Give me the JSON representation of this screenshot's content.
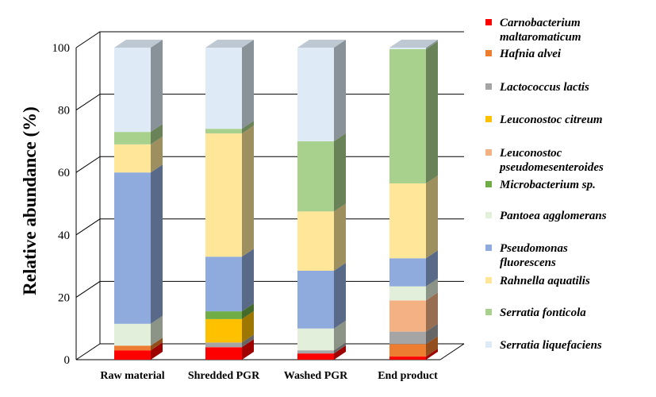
{
  "chart_data": {
    "type": "bar",
    "stacked": true,
    "three_d": true,
    "ylabel": "Relative abundance (%)",
    "xlabel": "",
    "ylim": [
      0,
      100
    ],
    "yticks": [
      0,
      20,
      40,
      60,
      80,
      100
    ],
    "grid": "horizontal",
    "legend_position": "right",
    "categories": [
      "Raw material",
      "Shredded PGR",
      "Washed PGR",
      "End product"
    ],
    "series": [
      {
        "name": "Carnobacterium maltaromaticum",
        "lines": [
          "Carnobacterium",
          "maltaromaticum"
        ],
        "color": "#ff0000",
        "values": [
          3,
          4,
          2,
          1
        ]
      },
      {
        "name": "Hafnia alvei",
        "lines": [
          "Hafnia alvei"
        ],
        "color": "#ed7d31",
        "values": [
          1.5,
          0,
          0,
          4
        ]
      },
      {
        "name": "Lactococcus lactis",
        "lines": [
          "Lactococcus lactis"
        ],
        "color": "#a5a5a5",
        "values": [
          0,
          1.5,
          1,
          4
        ]
      },
      {
        "name": "Leuconostoc citreum",
        "lines": [
          "Leuconostoc citreum"
        ],
        "color": "#ffc000",
        "values": [
          0,
          7.5,
          0,
          0
        ]
      },
      {
        "name": "Leuconostoc pseudomesenteroides",
        "lines": [
          "Leuconostoc",
          "pseudomesenteroides"
        ],
        "color": "#f4b183",
        "values": [
          0,
          0,
          0,
          10
        ]
      },
      {
        "name": "Microbacterium sp.",
        "lines": [
          "Microbacterium sp."
        ],
        "color": "#70ad47",
        "values": [
          0,
          2.5,
          0,
          0
        ]
      },
      {
        "name": "Pantoea agglomerans",
        "lines": [
          "Pantoea agglomerans"
        ],
        "color": "#e2efda",
        "values": [
          7,
          0,
          7,
          4.5
        ]
      },
      {
        "name": "Pseudomonas fluorescens",
        "lines": [
          "Pseudomonas",
          "fluorescens"
        ],
        "color": "#8faadc",
        "values": [
          48.5,
          17.5,
          18.5,
          9
        ]
      },
      {
        "name": "Rahnella aquatilis",
        "lines": [
          "Rahnella aquatilis"
        ],
        "color": "#ffe699",
        "values": [
          9,
          39.5,
          19,
          24
        ]
      },
      {
        "name": "Serratia fonticola",
        "lines": [
          "Serratia fonticola"
        ],
        "color": "#a9d18e",
        "values": [
          4,
          1.5,
          22.5,
          43
        ]
      },
      {
        "name": "Serratia liquefaciens",
        "lines": [
          "Serratia liquefaciens"
        ],
        "color": "#deebf7",
        "values": [
          27,
          26,
          30,
          0.5
        ]
      }
    ]
  }
}
